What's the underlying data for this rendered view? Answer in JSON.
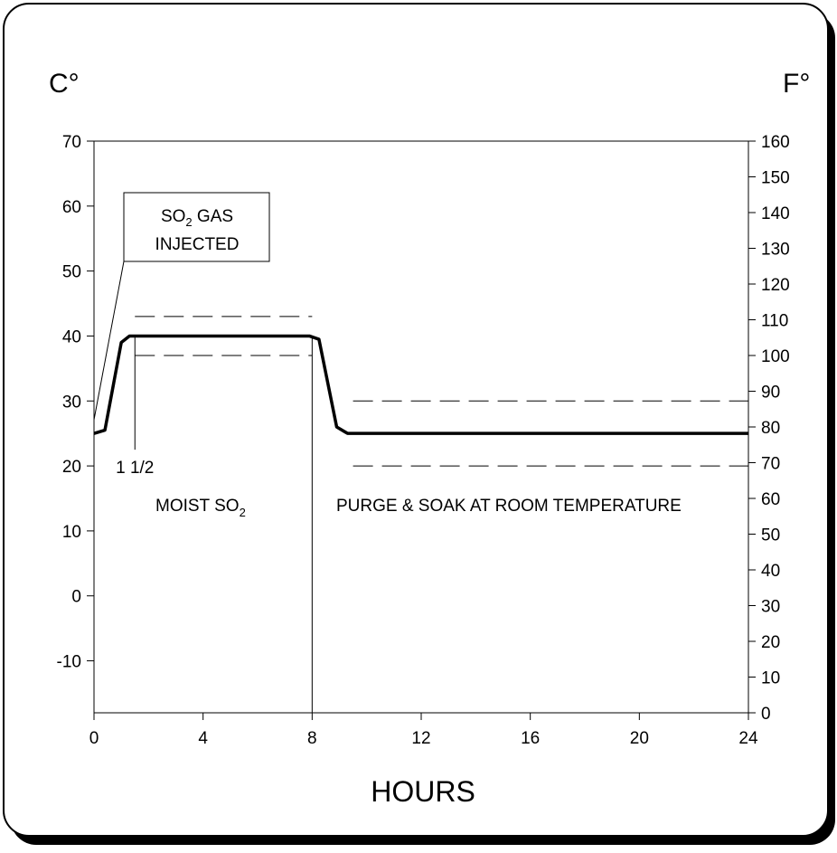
{
  "chart_data": {
    "type": "line",
    "xlabel": "HOURS",
    "ylabel_left": "C°",
    "ylabel_right": "F°",
    "xlim": [
      0,
      24
    ],
    "ylim_left": [
      -18,
      70
    ],
    "ylim_right": [
      0,
      160
    ],
    "x_ticks": [
      "0",
      "4",
      "8",
      "12",
      "16",
      "20",
      "24"
    ],
    "y_left_ticks": [
      "70",
      "60",
      "50",
      "40",
      "30",
      "20",
      "10",
      "0",
      "-10"
    ],
    "y_right_ticks": [
      "160",
      "150",
      "140",
      "130",
      "120",
      "110",
      "100",
      "90",
      "80",
      "70",
      "60",
      "50",
      "40",
      "30",
      "20",
      "10",
      "0"
    ],
    "grid": false,
    "series": [
      {
        "x": [
          0,
          0.4,
          1.0,
          1.3,
          7.9,
          8.25,
          8.9,
          9.3,
          24
        ],
        "y": [
          25,
          25.5,
          39,
          40,
          40,
          39.5,
          26,
          25,
          25
        ]
      }
    ],
    "tolerance_bands": [
      {
        "x": [
          1.5,
          8
        ],
        "y": [
          37,
          43
        ]
      },
      {
        "x": [
          9.5,
          24
        ],
        "y": [
          20,
          30
        ]
      }
    ],
    "markers": [
      {
        "x": 1.5,
        "label": "1 1/2"
      },
      {
        "x": 8
      }
    ],
    "annotations": {
      "gas_box": {
        "line1_a": "SO",
        "line1_sub": "2",
        "line1_b": " GAS",
        "line2": "INJECTED"
      },
      "moist": {
        "a": "MOIST SO",
        "sub": "2"
      },
      "purge": "PURGE & SOAK AT ROOM TEMPERATURE"
    }
  }
}
